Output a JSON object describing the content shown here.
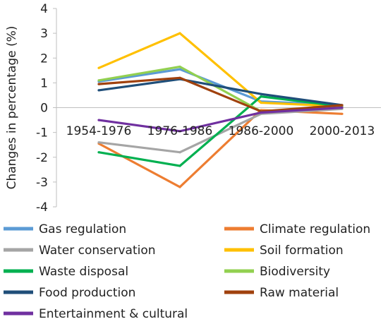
{
  "chart_data": {
    "type": "line",
    "title": "",
    "xlabel": "",
    "ylabel": "Changes in percentage (%)",
    "ylim": [
      -4,
      4
    ],
    "yticks": [
      4,
      3,
      2,
      1,
      0,
      -1,
      -2,
      -3,
      -4
    ],
    "grid": false,
    "legend_position": "bottom",
    "categories": [
      "1954-1976",
      "1976-1986",
      "1986-2000",
      "2000-2013"
    ],
    "series": [
      {
        "name": "Gas regulation",
        "color": "#5b9bd5",
        "values": [
          1.05,
          1.55,
          0.25,
          0.1
        ]
      },
      {
        "name": "Climate regulation",
        "color": "#ed7d31",
        "values": [
          -1.45,
          -3.2,
          -0.1,
          -0.25
        ]
      },
      {
        "name": "Water conservation",
        "color": "#a5a5a5",
        "values": [
          -1.4,
          -1.8,
          -0.25,
          -0.05
        ]
      },
      {
        "name": "Soil formation",
        "color": "#ffc000",
        "values": [
          1.6,
          3.0,
          0.2,
          0.05
        ]
      },
      {
        "name": "Waste disposal",
        "color": "#00b050",
        "values": [
          -1.8,
          -2.35,
          0.45,
          0.05
        ]
      },
      {
        "name": "Biodiversity",
        "color": "#92d050",
        "values": [
          1.1,
          1.65,
          -0.15,
          0.05
        ]
      },
      {
        "name": "Food production",
        "color": "#1f4e79",
        "values": [
          0.7,
          1.15,
          0.55,
          0.1
        ]
      },
      {
        "name": "Raw material",
        "color": "#a0410d",
        "values": [
          0.95,
          1.2,
          -0.15,
          0.1
        ]
      },
      {
        "name": "Entertainment & cultural",
        "color": "#7030a0",
        "values": [
          -0.5,
          -0.95,
          -0.2,
          0.0
        ]
      }
    ]
  }
}
